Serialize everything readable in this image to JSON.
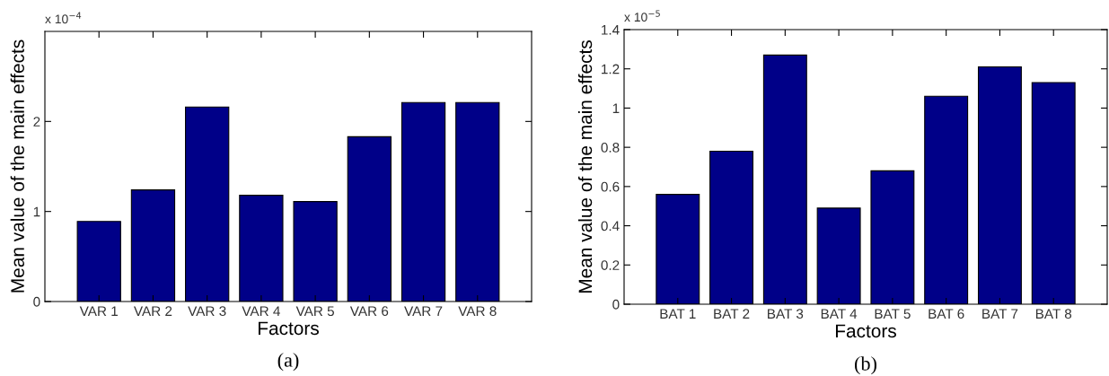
{
  "chart_data": [
    {
      "type": "bar",
      "xlabel": "Factors",
      "ylabel": "Mean value of the main effects",
      "categories": [
        "VAR 1",
        "VAR 2",
        "VAR 3",
        "VAR 4",
        "VAR 5",
        "VAR 6",
        "VAR 7",
        "VAR 8"
      ],
      "values": [
        0.89,
        1.24,
        2.16,
        1.18,
        1.11,
        1.83,
        2.21,
        2.21
      ],
      "color": "#000088",
      "ylim": [
        0,
        3
      ],
      "yticks": [
        0,
        1,
        2
      ],
      "annotations": [
        "x 10$^{−4}$",
        "(a)"
      ]
    },
    {
      "type": "bar",
      "xlabel": "Factors",
      "ylabel": "Mean value of the main effects",
      "categories": [
        "BAT 1",
        "BAT 2",
        "BAT 3",
        "BAT 4",
        "BAT 5",
        "BAT 6",
        "BAT 7",
        "BAT 8"
      ],
      "values": [
        0.56,
        0.78,
        1.27,
        0.49,
        0.68,
        1.06,
        1.21,
        1.13
      ],
      "color": "#000088",
      "ylim": [
        0,
        1.4
      ],
      "yticks": [
        0,
        0.2,
        0.4,
        0.6,
        0.8,
        1,
        1.2,
        1.4
      ],
      "annotations": [
        "x 10$^{−5}$",
        "(b)"
      ]
    }
  ]
}
